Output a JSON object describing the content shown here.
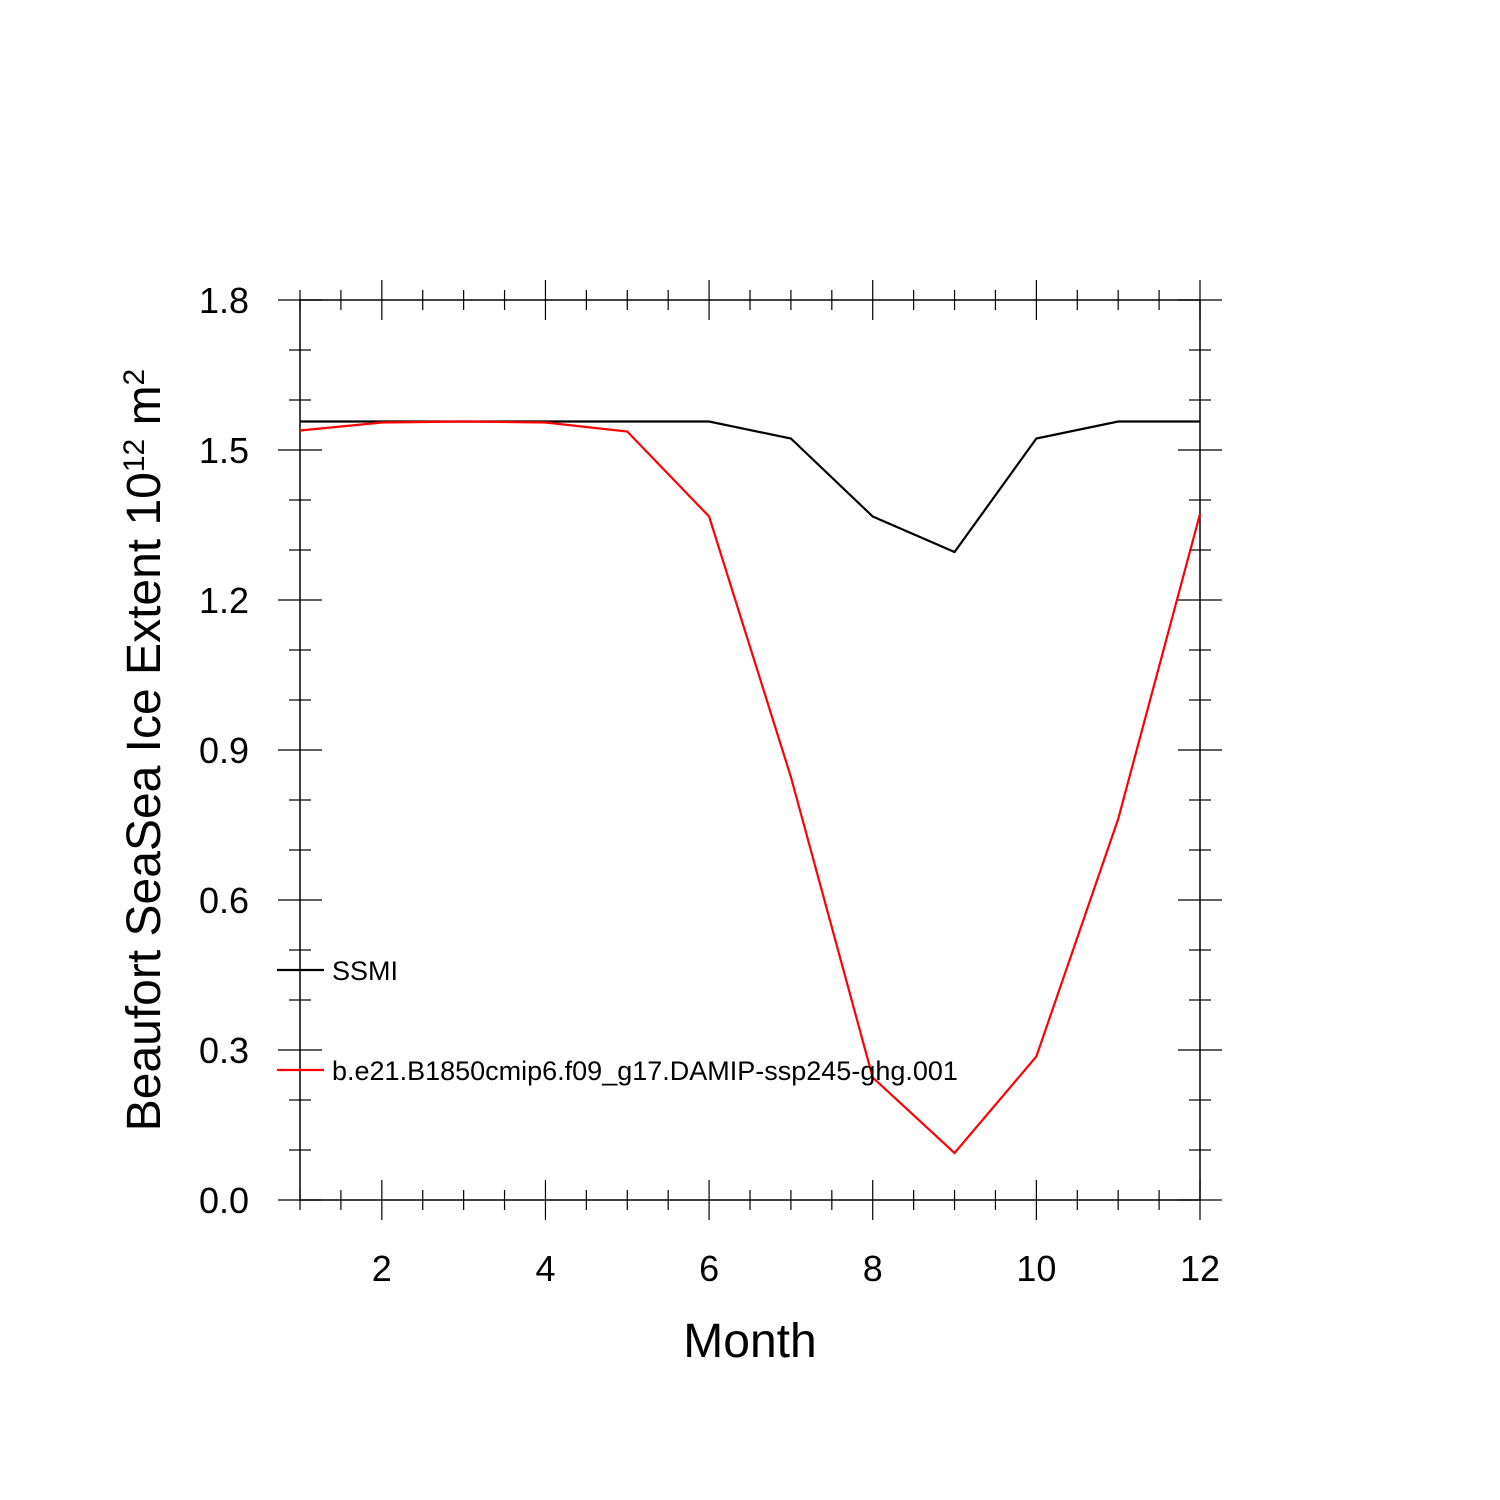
{
  "chart_data": {
    "type": "line",
    "xlabel": "Month",
    "ylabel": "Beaufort SeaSea Ice Extent 10",
    "ylabel_exponent": "12",
    "ylabel_unit": " m",
    "ylabel_unit_exponent": "2",
    "xlim": [
      1,
      12
    ],
    "ylim": [
      0.0,
      1.8
    ],
    "xticks": [
      2,
      4,
      6,
      8,
      10,
      12
    ],
    "xtick_labels": [
      "2",
      "4",
      "6",
      "8",
      "10",
      "12"
    ],
    "yticks": [
      0.0,
      0.3,
      0.6,
      0.9,
      1.2,
      1.5,
      1.8
    ],
    "ytick_labels": [
      "0.0",
      "0.3",
      "0.6",
      "0.9",
      "1.2",
      "1.5",
      "1.8"
    ],
    "grid": false,
    "legend_position": "lower-left",
    "x": [
      1,
      2,
      3,
      4,
      5,
      6,
      7,
      8,
      9,
      10,
      11,
      12
    ],
    "series": [
      {
        "name": "SSMI",
        "color": "#000000",
        "values": [
          1.557,
          1.557,
          1.557,
          1.557,
          1.557,
          1.557,
          1.523,
          1.367,
          1.296,
          1.523,
          1.557,
          1.557
        ]
      },
      {
        "name": "b.e21.B1850cmip6.f09_g17.DAMIP-ssp245-ghg.001",
        "color": "#ff0000",
        "values": [
          1.539,
          1.555,
          1.557,
          1.555,
          1.537,
          1.367,
          0.846,
          0.245,
          0.094,
          0.287,
          0.762,
          1.372
        ]
      }
    ]
  }
}
